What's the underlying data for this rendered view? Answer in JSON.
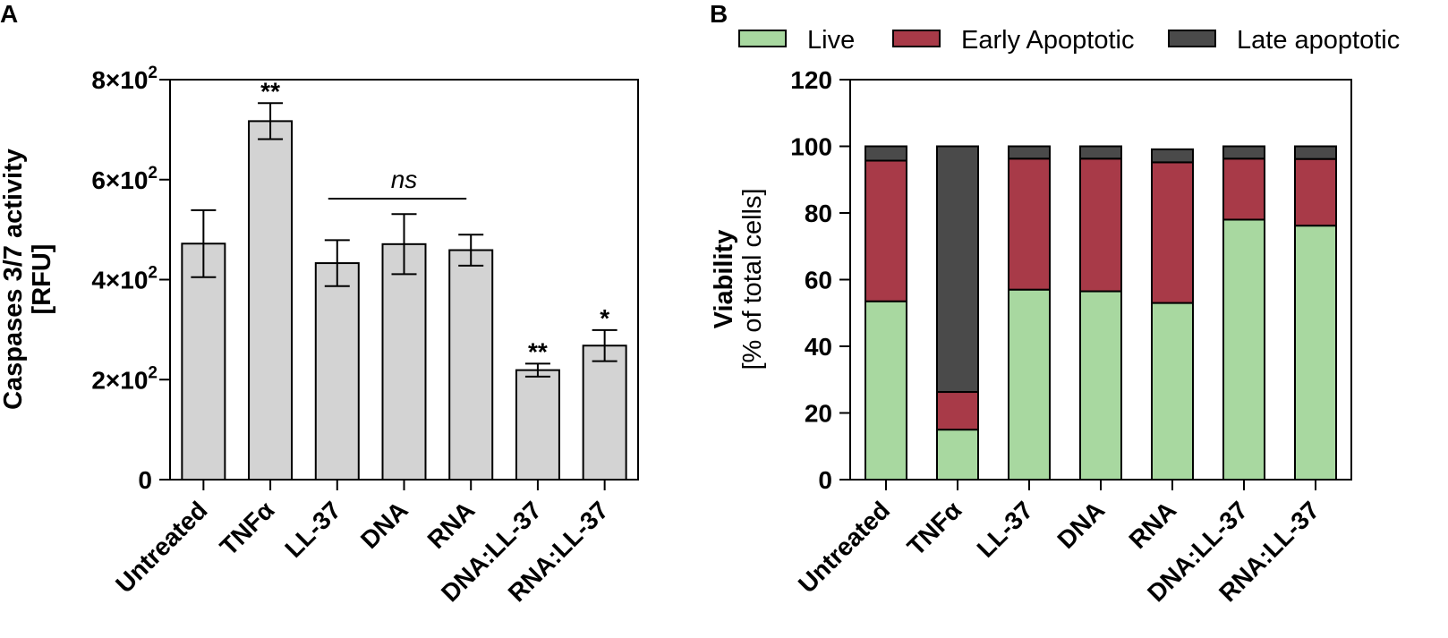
{
  "chart_data": [
    {
      "panel": "A",
      "type": "bar",
      "title": "",
      "ylabel": "Caspases 3/7 activity",
      "ylabel_sub": "[RFU]",
      "xlabel": "",
      "ylim": [
        0,
        800
      ],
      "yticks": [
        0,
        200,
        400,
        600,
        800
      ],
      "ytick_labels": [
        "0",
        "2×10",
        "4×10",
        "6×10",
        "8×10"
      ],
      "ytick_exponents": [
        "",
        "2",
        "2",
        "2",
        "2"
      ],
      "categories": [
        "Untreated",
        "TNFα",
        "LL-37",
        "DNA",
        "RNA",
        "DNA:LL-37",
        "RNA:LL-37"
      ],
      "values": [
        472,
        717,
        433,
        471,
        459,
        219,
        268
      ],
      "errors": [
        67,
        36,
        46,
        60,
        31,
        13,
        31
      ],
      "significance": [
        "",
        "**",
        "",
        "",
        "",
        "**",
        "*"
      ],
      "bracket": {
        "from": "LL-37",
        "to": "RNA",
        "label": "ns"
      },
      "bar_color": "#d3d3d3"
    },
    {
      "panel": "B",
      "type": "bar",
      "stacked": true,
      "title": "",
      "ylabel": "Viability",
      "ylabel_sub": "[% of total cells]",
      "xlabel": "",
      "ylim": [
        0,
        120
      ],
      "yticks": [
        0,
        20,
        40,
        60,
        80,
        100,
        120
      ],
      "ytick_labels": [
        "0",
        "20",
        "40",
        "60",
        "80",
        "100",
        "120"
      ],
      "categories": [
        "Untreated",
        "TNFα",
        "LL-37",
        "DNA",
        "RNA",
        "DNA:LL-37",
        "RNA:LL-37"
      ],
      "legend_position": "top",
      "series": [
        {
          "name": "Live",
          "color": "#a8d8a0",
          "values": [
            53.5,
            15,
            57,
            56.5,
            53,
            78,
            76.2
          ]
        },
        {
          "name": "Early Apoptotic",
          "color": "#a83a48",
          "values": [
            42.2,
            11.3,
            39.3,
            39.8,
            42.2,
            18.3,
            20
          ]
        },
        {
          "name": "Late apoptotic",
          "color": "#4a4a4a",
          "values": [
            4.3,
            73.7,
            3.7,
            3.7,
            3.9,
            3.7,
            3.8
          ]
        }
      ]
    }
  ]
}
